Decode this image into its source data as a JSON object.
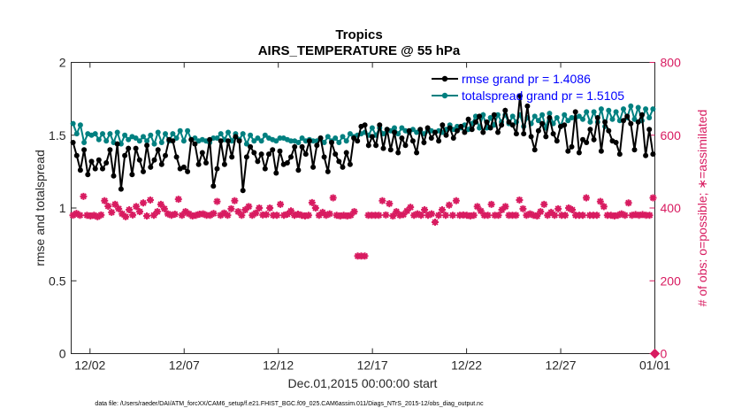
{
  "chart_data": {
    "type": "line",
    "title": "Tropics",
    "subtitle": "AIRS_TEMPERATURE @ 55 hPa",
    "xlabel": "Dec.01,2015 00:00:00 start",
    "ylabel": "rmse and totalspread",
    "y2label": "# of obs: o=possible; ∗=assimilated",
    "footnote": "data file: /Users/raeder/DAI/ATM_forcXX/CAM6_setup/f.e21.FHIST_BGC.f09_025.CAM6assim.011/Diags_NTrS_2015-12/obs_diag_output.nc",
    "x_tick_labels": [
      "12/02",
      "12/07",
      "12/12",
      "12/17",
      "12/22",
      "12/27",
      "01/01"
    ],
    "x_tick_days": [
      1,
      6,
      11,
      16,
      21,
      26,
      31
    ],
    "xlim_days": [
      0,
      31
    ],
    "ylim": [
      0,
      2
    ],
    "y_ticks": [
      "0",
      "0.5",
      "1",
      "1.5",
      "2"
    ],
    "y_tick_values": [
      0,
      0.5,
      1,
      1.5,
      2
    ],
    "y2lim": [
      0,
      800
    ],
    "y2_ticks": [
      "0",
      "200",
      "400",
      "600",
      "800"
    ],
    "y2_tick_values": [
      0,
      200,
      400,
      600,
      800
    ],
    "legend_position": "top-right",
    "series": [
      {
        "name": "rmse",
        "legend": "rmse grand pr = 1.4086",
        "color": "#000000",
        "marker": "dot",
        "values": [
          1.45,
          1.36,
          1.26,
          1.4,
          1.23,
          1.32,
          1.27,
          1.33,
          1.27,
          1.31,
          1.4,
          1.22,
          1.44,
          1.13,
          1.36,
          1.41,
          1.23,
          1.41,
          1.33,
          1.25,
          1.43,
          1.28,
          1.33,
          1.4,
          1.3,
          1.36,
          1.47,
          1.46,
          1.35,
          1.27,
          1.28,
          1.25,
          1.47,
          1.44,
          1.3,
          1.38,
          1.31,
          1.47,
          1.15,
          1.27,
          1.46,
          1.3,
          1.46,
          1.35,
          1.49,
          1.46,
          1.12,
          1.35,
          1.42,
          1.38,
          1.32,
          1.37,
          1.27,
          1.37,
          1.4,
          1.24,
          1.39,
          1.3,
          1.31,
          1.35,
          1.42,
          1.26,
          1.42,
          1.37,
          1.46,
          1.28,
          1.43,
          1.48,
          1.35,
          1.25,
          1.45,
          1.37,
          1.32,
          1.28,
          1.38,
          1.3,
          1.48,
          1.46,
          1.56,
          1.57,
          1.43,
          1.49,
          1.43,
          1.57,
          1.41,
          1.54,
          1.4,
          1.52,
          1.38,
          1.48,
          1.43,
          1.53,
          1.46,
          1.38,
          1.54,
          1.45,
          1.55,
          1.48,
          1.52,
          1.46,
          1.57,
          1.5,
          1.55,
          1.48,
          1.53,
          1.56,
          1.52,
          1.61,
          1.54,
          1.59,
          1.63,
          1.52,
          1.59,
          1.55,
          1.64,
          1.52,
          1.57,
          1.67,
          1.59,
          1.57,
          1.51,
          1.77,
          1.51,
          1.7,
          1.49,
          1.4,
          1.53,
          1.58,
          1.49,
          1.62,
          1.51,
          1.46,
          1.56,
          1.57,
          1.39,
          1.42,
          1.66,
          1.38,
          1.47,
          1.45,
          1.54,
          1.47,
          1.62,
          1.39,
          1.59,
          1.53,
          1.46,
          1.45,
          1.37,
          1.6,
          1.63,
          1.58,
          1.4,
          1.59,
          1.64,
          1.36,
          1.54,
          1.37
        ]
      },
      {
        "name": "totalspread",
        "legend": "totalspread grand pr = 1.5105",
        "color": "#008080",
        "marker": "dot",
        "values": [
          1.58,
          1.51,
          1.57,
          1.45,
          1.51,
          1.5,
          1.51,
          1.47,
          1.51,
          1.46,
          1.51,
          1.45,
          1.52,
          1.44,
          1.5,
          1.47,
          1.49,
          1.48,
          1.46,
          1.49,
          1.46,
          1.5,
          1.44,
          1.52,
          1.45,
          1.51,
          1.46,
          1.51,
          1.48,
          1.53,
          1.46,
          1.53,
          1.47,
          1.48,
          1.46,
          1.47,
          1.46,
          1.45,
          1.48,
          1.48,
          1.51,
          1.47,
          1.52,
          1.46,
          1.51,
          1.47,
          1.51,
          1.44,
          1.5,
          1.46,
          1.48,
          1.46,
          1.5,
          1.48,
          1.47,
          1.46,
          1.48,
          1.48,
          1.47,
          1.46,
          1.46,
          1.45,
          1.48,
          1.46,
          1.47,
          1.46,
          1.46,
          1.48,
          1.45,
          1.49,
          1.46,
          1.48,
          1.45,
          1.49,
          1.46,
          1.51,
          1.49,
          1.5,
          1.51,
          1.52,
          1.5,
          1.55,
          1.5,
          1.55,
          1.51,
          1.54,
          1.53,
          1.55,
          1.51,
          1.55,
          1.53,
          1.52,
          1.54,
          1.52,
          1.53,
          1.51,
          1.53,
          1.53,
          1.52,
          1.53,
          1.52,
          1.54,
          1.57,
          1.54,
          1.56,
          1.55,
          1.57,
          1.54,
          1.58,
          1.63,
          1.55,
          1.64,
          1.55,
          1.62,
          1.57,
          1.64,
          1.59,
          1.64,
          1.58,
          1.63,
          1.59,
          1.64,
          1.56,
          1.62,
          1.58,
          1.63,
          1.6,
          1.64,
          1.55,
          1.65,
          1.58,
          1.62,
          1.56,
          1.64,
          1.6,
          1.62,
          1.62,
          1.63,
          1.61,
          1.66,
          1.59,
          1.66,
          1.59,
          1.68,
          1.56,
          1.67,
          1.61,
          1.66,
          1.6,
          1.68,
          1.62,
          1.7,
          1.61,
          1.69,
          1.6,
          1.68,
          1.62,
          1.68
        ]
      }
    ],
    "obs_assimilated": {
      "name": "# of obs assimilated",
      "color": "#d81b60",
      "axis": "right",
      "marker": "asterisk",
      "values": [
        380,
        385,
        380,
        432,
        380,
        378,
        380,
        376,
        381,
        420,
        405,
        388,
        410,
        398,
        384,
        376,
        395,
        381,
        404,
        390,
        414,
        378,
        422,
        380,
        390,
        410,
        398,
        384,
        380,
        383,
        424,
        380,
        390,
        384,
        378,
        380,
        383,
        384,
        380,
        380,
        385,
        418,
        380,
        386,
        380,
        398,
        420,
        390,
        380,
        395,
        404,
        380,
        386,
        400,
        381,
        382,
        400,
        380,
        380,
        410,
        380,
        383,
        392,
        380,
        383,
        380,
        378,
        380,
        415,
        400,
        380,
        388,
        380,
        384,
        428,
        380,
        378,
        380,
        378,
        380,
        390,
        268,
        268,
        268,
        380,
        380,
        380,
        380,
        420,
        381,
        412,
        378,
        390,
        380,
        382,
        392,
        402,
        380,
        384,
        380,
        395,
        380,
        384,
        361,
        380,
        395,
        380,
        408,
        380,
        420,
        380,
        381,
        380,
        378,
        380,
        404,
        392,
        380,
        380,
        410,
        380,
        380,
        395,
        404,
        380,
        380,
        380,
        422,
        398,
        380,
        384,
        380,
        378,
        390,
        410,
        380,
        388,
        380,
        398,
        380,
        380,
        400,
        395,
        380,
        380,
        380,
        428,
        380,
        380,
        380,
        418,
        404,
        380,
        380,
        378,
        380,
        384,
        380,
        414,
        380,
        382,
        380,
        382,
        380,
        380,
        428
      ]
    },
    "obs_possible_marker_at": {
      "day": 31,
      "value": 0
    }
  }
}
